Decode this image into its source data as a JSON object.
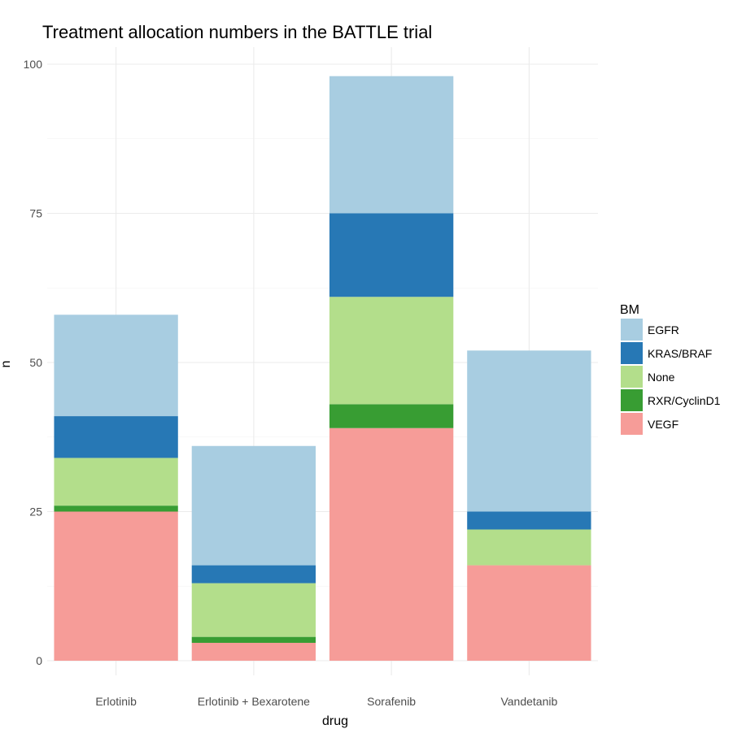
{
  "chart_data": {
    "type": "bar",
    "stacked": true,
    "title": "Treatment allocation numbers in the BATTLE trial",
    "xlabel": "drug",
    "ylabel": "n",
    "ylim": [
      0,
      100
    ],
    "yticks": [
      0,
      25,
      50,
      75,
      100
    ],
    "grid": true,
    "legend_title": "BM",
    "legend_position": "right",
    "categories": [
      "Erlotinib",
      "Erlotinib + Bexarotene",
      "Sorafenib",
      "Vandetanib"
    ],
    "series": [
      {
        "name": "VEGF",
        "color": "#F69C98",
        "values": [
          25,
          3,
          39,
          16
        ]
      },
      {
        "name": "RXR/CyclinD1",
        "color": "#389D33",
        "values": [
          1,
          1,
          4,
          0
        ]
      },
      {
        "name": "None",
        "color": "#B3DE8B",
        "values": [
          8,
          9,
          18,
          6
        ]
      },
      {
        "name": "KRAS/BRAF",
        "color": "#2778B5",
        "values": [
          7,
          3,
          14,
          3
        ]
      },
      {
        "name": "EGFR",
        "color": "#A8CDE1",
        "values": [
          17,
          20,
          23,
          27
        ]
      }
    ],
    "legend_order": [
      "EGFR",
      "KRAS/BRAF",
      "None",
      "RXR/CyclinD1",
      "VEGF"
    ]
  }
}
